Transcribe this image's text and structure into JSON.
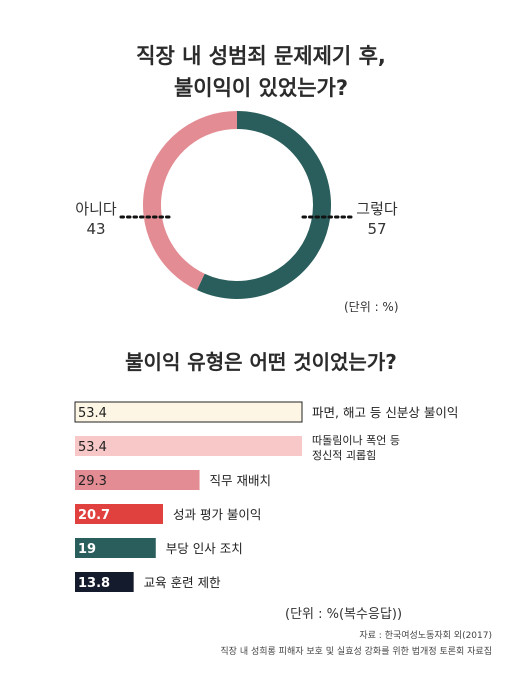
{
  "chart_data": [
    {
      "type": "pie",
      "title_lines": [
        "직장 내 성범죄 문제제기 후,",
        "불이익이 있었는가?"
      ],
      "slices": [
        {
          "label": "그렇다",
          "value": 57,
          "color": "#2a5e5c"
        },
        {
          "label": "아니다",
          "value": 43,
          "color": "#e38c94"
        }
      ],
      "unit": "(단위 : %)"
    },
    {
      "type": "bar",
      "title": "불이익 유형은 어떤 것이었는가?",
      "bars": [
        {
          "label_lines": [
            "파면, 해고 등 신분상 불이익"
          ],
          "value": 53.4,
          "color": "#fdf6e4",
          "value_color": "#222222"
        },
        {
          "label_lines": [
            "따돌림이나 폭언 등",
            "정신적 괴롭힘"
          ],
          "value": 53.4,
          "color": "#f8c8c9",
          "value_color": "#222222"
        },
        {
          "label_lines": [
            "직무 재배치"
          ],
          "value": 29.3,
          "color": "#e38c94",
          "value_color": "#222222"
        },
        {
          "label_lines": [
            "성과 평가 불이익"
          ],
          "value": 20.7,
          "color": "#e0413e",
          "value_color": "#ffffff"
        },
        {
          "label_lines": [
            "부당 인사 조치"
          ],
          "value": 19,
          "color": "#2a5e5c",
          "value_color": "#ffffff"
        },
        {
          "label_lines": [
            "교육 훈련 제한"
          ],
          "value": 13.8,
          "color": "#141b2c",
          "value_color": "#ffffff"
        }
      ],
      "unit": "(단위 : %(복수응답))"
    }
  ],
  "source": {
    "line1": "자료 : 한국여성노동자회 외(2017)",
    "line2": "직장 내 성희롱 피해자 보호 및 실효성 강화를 위한 법개정 토론회 자료집"
  }
}
